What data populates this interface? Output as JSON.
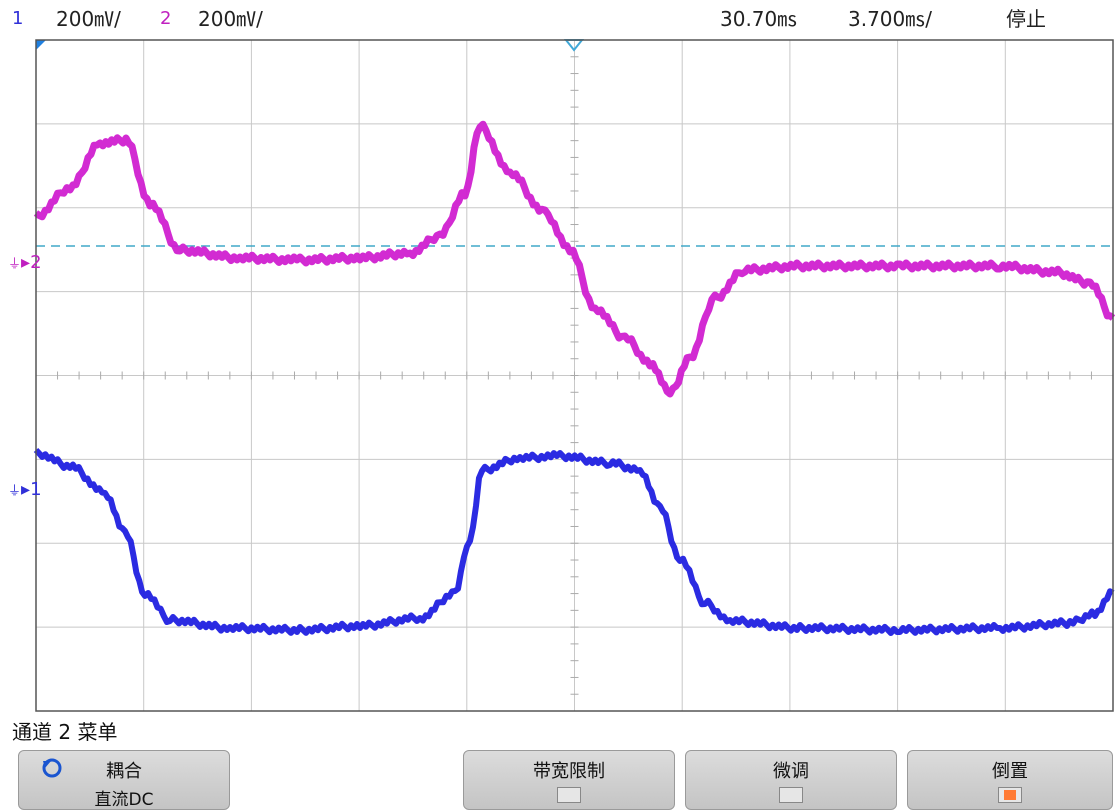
{
  "status_bar": {
    "ch1": {
      "num": "1",
      "scale": "200㎷/"
    },
    "ch2": {
      "num": "2",
      "scale": "200㎷/"
    },
    "time_position": "30.70㎳",
    "time_scale": "3.700㎳/",
    "run_state": "停止"
  },
  "display": {
    "ch1_marker": "1",
    "ch2_marker": "2",
    "ch1_color": "#2020e0",
    "ch2_color": "#d020d0",
    "grid_color": "#c8c8c8",
    "ref_line_color": "#40a8c8"
  },
  "menu": {
    "title": "通道 2 菜单",
    "softkeys": [
      {
        "label": "耦合",
        "value": "直流DC",
        "icon": "rotate-knob-icon"
      },
      {
        "label": "带宽限制",
        "checked": false
      },
      {
        "label": "微调",
        "checked": false
      },
      {
        "label": "倒置",
        "checked": true
      }
    ]
  }
}
